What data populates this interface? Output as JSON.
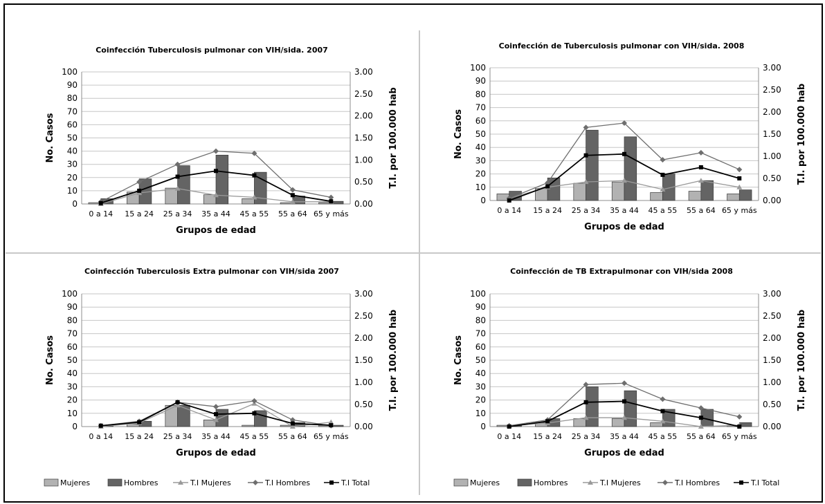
{
  "colors": {
    "mujeres_bar": "#b2b2b2",
    "hombres_bar": "#646464",
    "ti_mujeres": "#9a9a9a",
    "ti_hombres": "#6e6e6e",
    "ti_total": "#000000"
  },
  "legend": {
    "mujeres": "Mujeres",
    "hombres": "Hombres",
    "ti_mujeres": "T.I Mujeres",
    "ti_hombres": "T.I Hombres",
    "ti_total": "T.I Total"
  },
  "chart_data": [
    {
      "type": "bar",
      "title": "Coinfección Tuberculosis pulmonar con VIH/sida. 2007",
      "xlabel": "Grupos de edad",
      "ylabel": "No. Casos",
      "y2label": "T.I. por 100.000 hab",
      "ylim": [
        0,
        100
      ],
      "y2lim": [
        0,
        3
      ],
      "yticks": [
        "0",
        "10",
        "20",
        "30",
        "40",
        "50",
        "60",
        "70",
        "80",
        "90",
        "100"
      ],
      "y2ticks": [
        "0.00",
        "0.50",
        "1.00",
        "1.50",
        "2.00",
        "2.50",
        "3.00"
      ],
      "categories": [
        "0 a 14",
        "15 a 24",
        "25 a 34",
        "35 a 44",
        "45 a 55",
        "55 a 64",
        "65 y más"
      ],
      "series": [
        {
          "name": "Mujeres",
          "kind": "bar",
          "axis": "left",
          "values": [
            1,
            9,
            12,
            7,
            4,
            1,
            1
          ]
        },
        {
          "name": "Hombres",
          "kind": "bar",
          "axis": "left",
          "values": [
            4,
            19,
            29,
            37,
            24,
            6,
            2
          ]
        },
        {
          "name": "T.I Mujeres",
          "kind": "line",
          "axis": "right",
          "marker": "triangle",
          "values": [
            0.0,
            0.25,
            0.35,
            0.2,
            0.15,
            0.05,
            0.05
          ]
        },
        {
          "name": "T.I Hombres",
          "kind": "line",
          "axis": "right",
          "marker": "diamond",
          "values": [
            0.05,
            0.5,
            0.9,
            1.2,
            1.15,
            0.32,
            0.15
          ]
        },
        {
          "name": "T.I Total",
          "kind": "line",
          "axis": "right",
          "marker": "square",
          "values": [
            0.02,
            0.3,
            0.62,
            0.75,
            0.65,
            0.2,
            0.06
          ]
        }
      ],
      "legend_position": "none"
    },
    {
      "type": "bar",
      "title": "Coinfección de Tuberculosis pulmonar con VIH/sida. 2008",
      "xlabel": "Grupos de edad",
      "ylabel": "No. Casos",
      "y2label": "T.I. por 100.000 hab",
      "ylim": [
        0,
        100
      ],
      "y2lim": [
        0,
        3
      ],
      "yticks": [
        "0",
        "10",
        "20",
        "30",
        "40",
        "50",
        "60",
        "70",
        "80",
        "90",
        "100"
      ],
      "y2ticks": [
        "0.00",
        "0.50",
        "1.00",
        "1.50",
        "2.00",
        "2.50",
        "3.00"
      ],
      "categories": [
        "0 a 14",
        "15 a 24",
        "25 a 34",
        "35 a 44",
        "45 a 55",
        "55 a 64",
        "65 y más"
      ],
      "series": [
        {
          "name": "Mujeres",
          "kind": "bar",
          "axis": "left",
          "values": [
            5,
            9,
            13,
            14,
            6,
            7,
            5
          ]
        },
        {
          "name": "Hombres",
          "kind": "bar",
          "axis": "left",
          "values": [
            7,
            17,
            53,
            48,
            20,
            15,
            8
          ]
        },
        {
          "name": "T.I Mujeres",
          "kind": "line",
          "axis": "right",
          "marker": "triangle",
          "values": [
            0.05,
            0.3,
            0.42,
            0.45,
            0.25,
            0.45,
            0.3
          ]
        },
        {
          "name": "T.I Hombres",
          "kind": "line",
          "axis": "right",
          "marker": "diamond",
          "values": [
            0.05,
            0.4,
            1.65,
            1.75,
            0.92,
            1.08,
            0.7
          ]
        },
        {
          "name": "T.I Total",
          "kind": "line",
          "axis": "right",
          "marker": "square",
          "values": [
            0.0,
            0.32,
            1.02,
            1.05,
            0.58,
            0.75,
            0.5
          ]
        }
      ],
      "legend_position": "none"
    },
    {
      "type": "bar",
      "title": "Coinfección Tuberculosis Extra pulmonar con VIH/sida 2007",
      "xlabel": "Grupos de edad",
      "ylabel": "No. Casos",
      "y2label": "T.I. por 100.000 hab",
      "ylim": [
        0,
        100
      ],
      "y2lim": [
        0,
        3
      ],
      "yticks": [
        "0",
        "10",
        "20",
        "30",
        "40",
        "50",
        "60",
        "70",
        "80",
        "90",
        "100"
      ],
      "y2ticks": [
        "0.00",
        "0.50",
        "1.00",
        "1.50",
        "2.00",
        "2.50",
        "3.00"
      ],
      "categories": [
        "0 a 14",
        "15 a 24",
        "25 a 34",
        "35 a 44",
        "45 a 55",
        "55 a 64",
        "65 y más"
      ],
      "series": [
        {
          "name": "Mujeres",
          "kind": "bar",
          "axis": "left",
          "values": [
            0,
            2,
            16,
            5,
            1,
            1,
            1
          ]
        },
        {
          "name": "Hombres",
          "kind": "bar",
          "axis": "left",
          "values": [
            1,
            4,
            16,
            13,
            12,
            3,
            1
          ]
        },
        {
          "name": "T.I Mujeres",
          "kind": "line",
          "axis": "right",
          "marker": "triangle",
          "values": [
            0.0,
            0.08,
            0.48,
            0.15,
            0.52,
            0.0,
            0.1
          ]
        },
        {
          "name": "T.I Hombres",
          "kind": "line",
          "axis": "right",
          "marker": "diamond",
          "values": [
            0.02,
            0.12,
            0.55,
            0.45,
            0.58,
            0.15,
            0.02
          ]
        },
        {
          "name": "T.I Total",
          "kind": "line",
          "axis": "right",
          "marker": "square",
          "values": [
            0.02,
            0.1,
            0.55,
            0.28,
            0.3,
            0.07,
            0.03
          ]
        }
      ],
      "legend_position": "bottom"
    },
    {
      "type": "bar",
      "title": "Coinfección de TB Extrapulmonar con VIH/sida 2008",
      "xlabel": "Grupos de edad",
      "ylabel": "No. Casos",
      "y2label": "T.I. por 100.000 hab",
      "ylim": [
        0,
        100
      ],
      "y2lim": [
        0,
        3
      ],
      "yticks": [
        "0",
        "10",
        "20",
        "30",
        "40",
        "50",
        "60",
        "70",
        "80",
        "90",
        "100"
      ],
      "y2ticks": [
        "0.00",
        "0.50",
        "1.00",
        "1.50",
        "2.00",
        "2.50",
        "3.00"
      ],
      "categories": [
        "0 a 14",
        "15 a 24",
        "25 a 34",
        "35 a 44",
        "45 a 55",
        "55 a 64",
        "65 y más"
      ],
      "series": [
        {
          "name": "Mujeres",
          "kind": "bar",
          "axis": "left",
          "values": [
            1,
            3,
            6,
            6,
            3,
            0,
            1
          ]
        },
        {
          "name": "Hombres",
          "kind": "bar",
          "axis": "left",
          "values": [
            1,
            6,
            30,
            27,
            13,
            13,
            3
          ]
        },
        {
          "name": "T.I Mujeres",
          "kind": "line",
          "axis": "right",
          "marker": "triangle",
          "values": [
            0.02,
            0.08,
            0.2,
            0.2,
            0.12,
            0.0,
            0.03
          ]
        },
        {
          "name": "T.I Hombres",
          "kind": "line",
          "axis": "right",
          "marker": "diamond",
          "values": [
            0.02,
            0.15,
            0.95,
            0.98,
            0.62,
            0.42,
            0.22
          ]
        },
        {
          "name": "T.I Total",
          "kind": "line",
          "axis": "right",
          "marker": "square",
          "values": [
            0.0,
            0.12,
            0.55,
            0.57,
            0.35,
            0.2,
            0.0
          ]
        }
      ],
      "legend_position": "bottom"
    }
  ]
}
